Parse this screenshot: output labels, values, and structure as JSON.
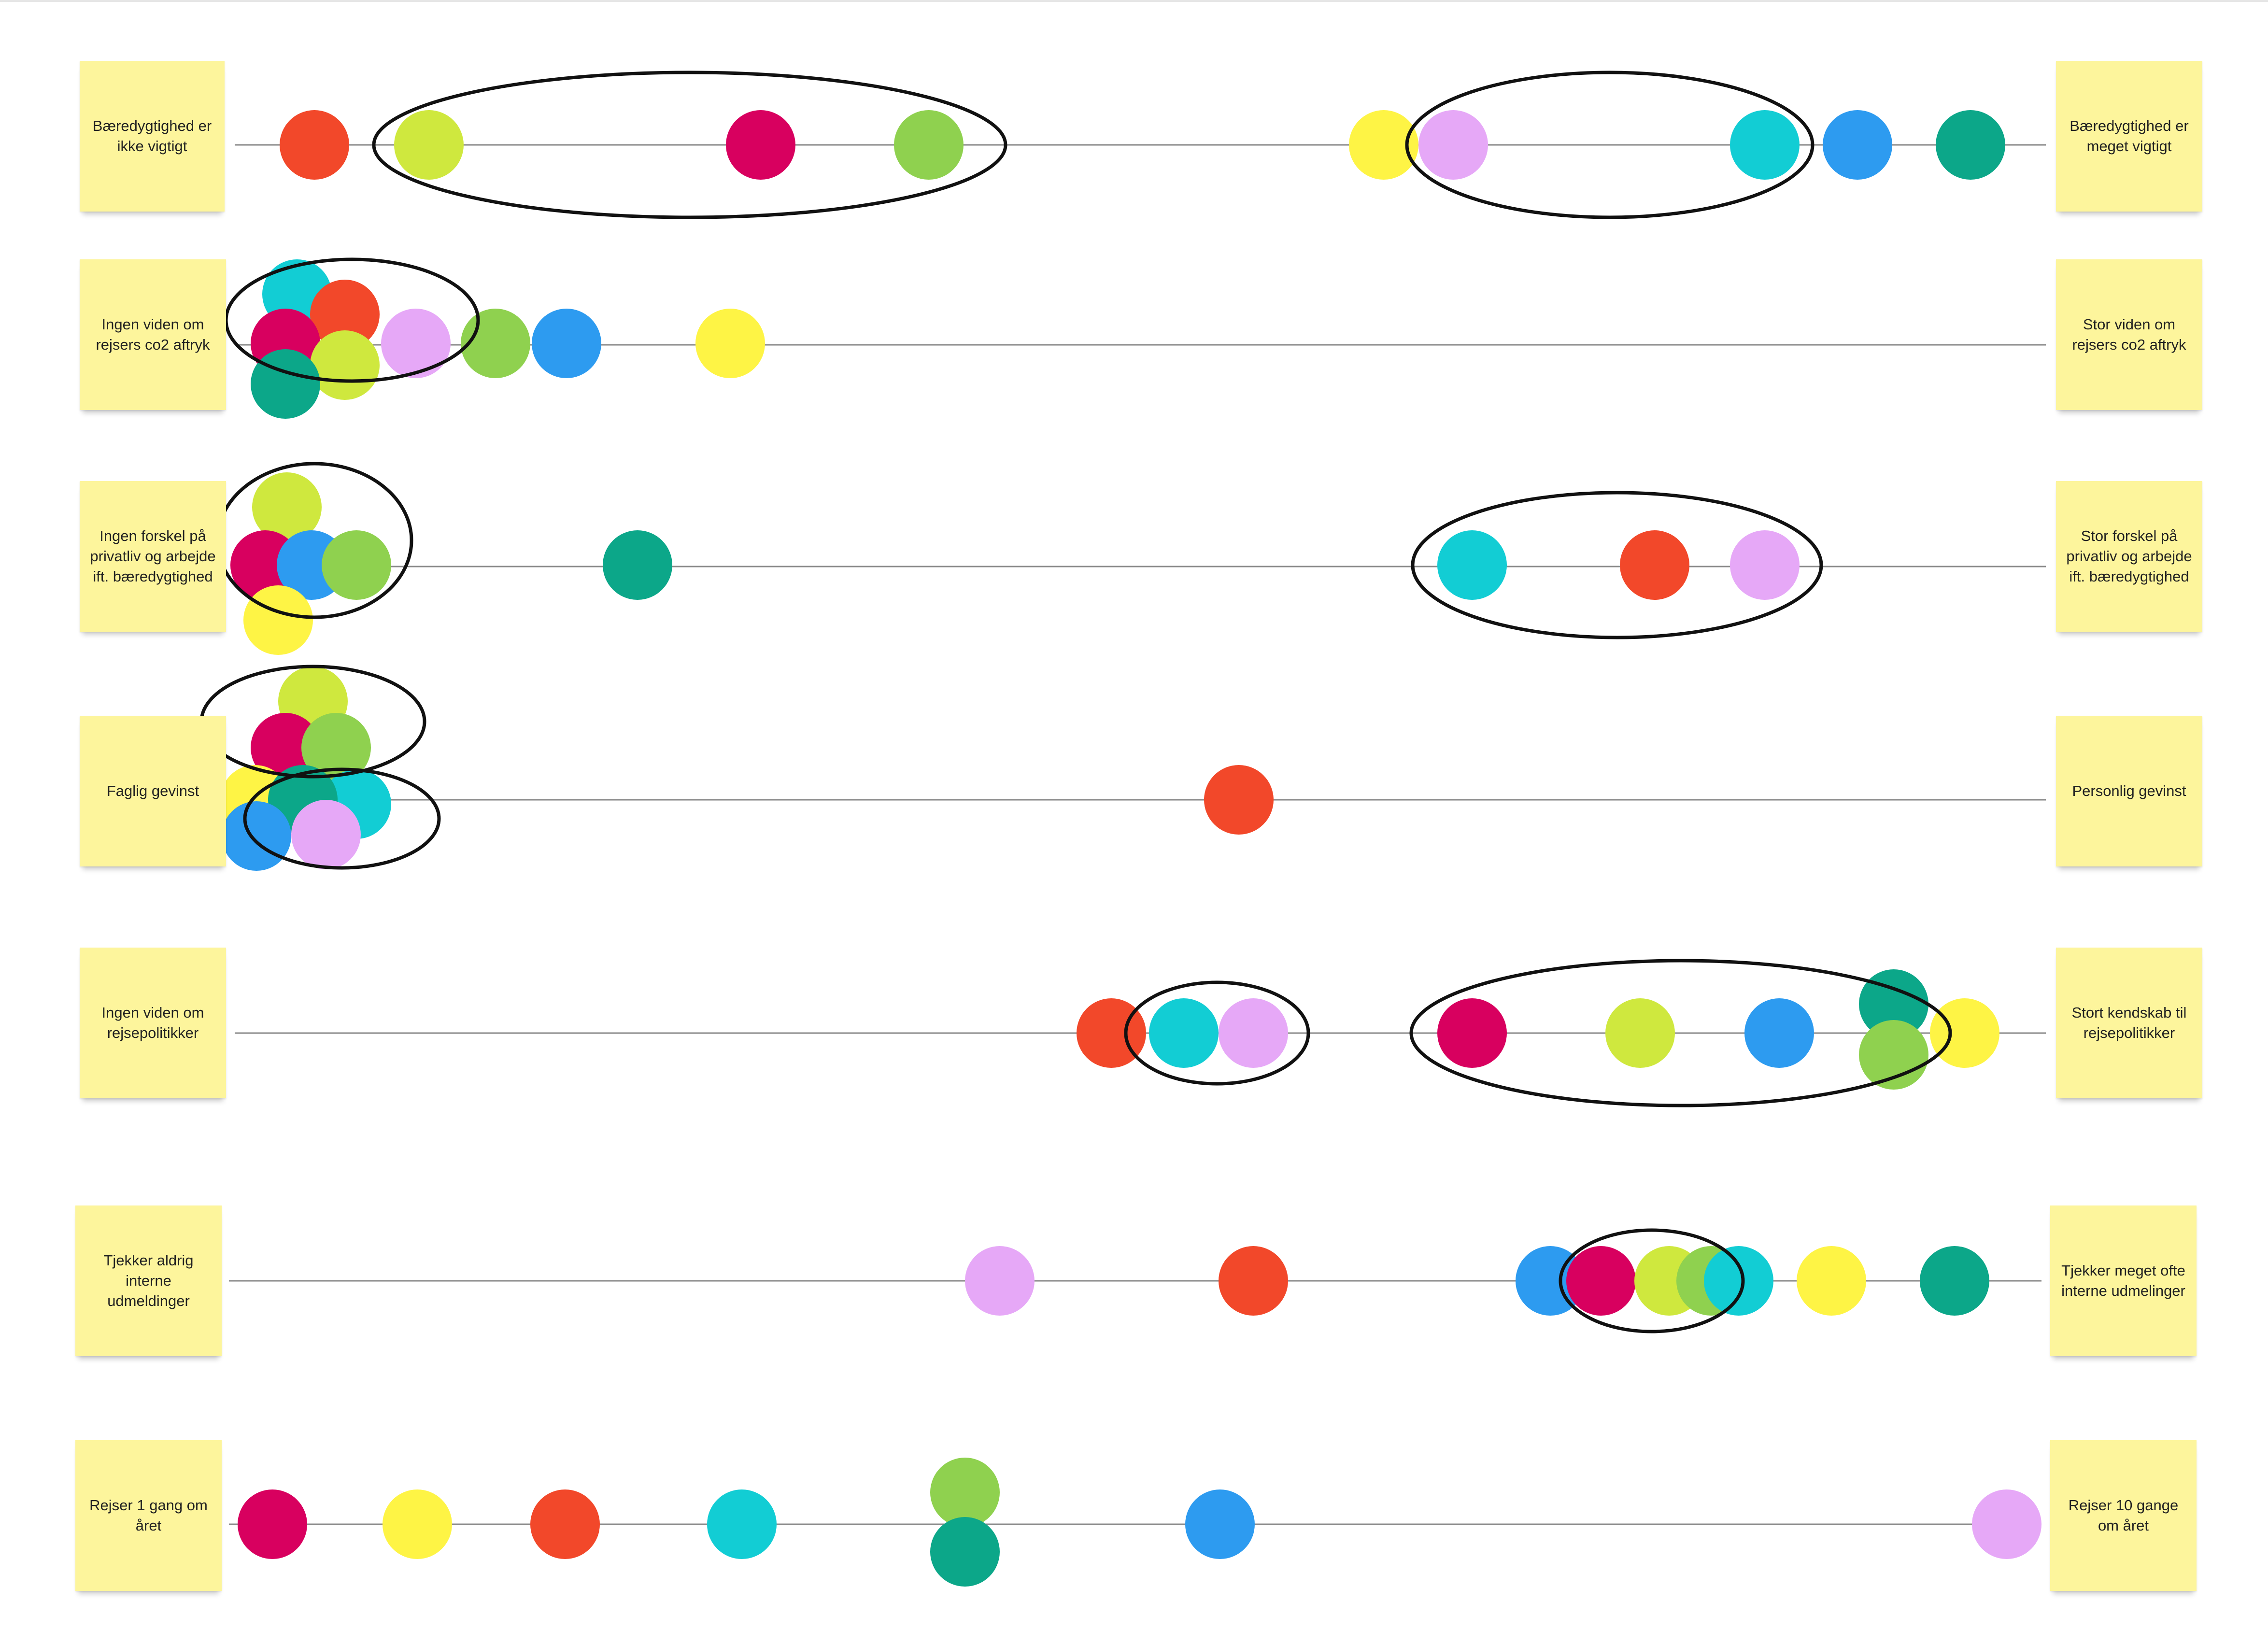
{
  "palette": {
    "red": "#f2482a",
    "lime": "#cfe83e",
    "magenta": "#d8005f",
    "green": "#8fd14f",
    "yellow": "#fef445",
    "lavender": "#e6a8f7",
    "cyan": "#12cdd4",
    "blue": "#2d9bf0",
    "teal": "#0ca789",
    "sticky": "#fdf59c",
    "ellipse": "#111111",
    "axis": "#8a8a8a"
  },
  "rows": [
    {
      "id": "row-sustainability-importance",
      "left_label": "Bæredygtighed er ikke vigtigt",
      "right_label": "Bæredygtighed er meget vigtigt",
      "dots": [
        "red",
        "lime",
        "magenta",
        "green",
        "yellow",
        "lavender",
        "cyan",
        "blue",
        "teal"
      ]
    },
    {
      "id": "row-co2-knowledge",
      "left_label": "Ingen viden om rejsers co2 aftryk",
      "right_label": "Stor viden om rejsers co2 aftryk",
      "dots": [
        "cyan",
        "red",
        "magenta",
        "lime",
        "teal",
        "lavender",
        "green",
        "blue",
        "yellow"
      ]
    },
    {
      "id": "row-private-work-difference",
      "left_label": "Ingen forskel på privatliv og arbejde ift. bæredygtighed",
      "right_label": "Stor forskel på privatliv og arbejde ift. bæredygtighed",
      "dots": [
        "lime",
        "magenta",
        "blue",
        "green",
        "yellow",
        "teal",
        "cyan",
        "red",
        "lavender"
      ]
    },
    {
      "id": "row-gain-type",
      "left_label": "Faglig gevinst",
      "right_label": "Personlig gevinst",
      "dots": [
        "lime",
        "magenta",
        "green",
        "yellow",
        "cyan",
        "teal",
        "blue",
        "lavender",
        "red"
      ]
    },
    {
      "id": "row-travel-policy-knowledge",
      "left_label": "Ingen viden om rejsepolitikker",
      "right_label": "Stort kendskab til rejsepolitikker",
      "dots": [
        "red",
        "cyan",
        "lavender",
        "magenta",
        "lime",
        "blue",
        "teal",
        "green",
        "yellow"
      ]
    },
    {
      "id": "row-internal-announcements",
      "left_label": "Tjekker aldrig interne udmeldinger",
      "right_label": "Tjekker meget ofte interne udmelinger",
      "dots": [
        "lavender",
        "red",
        "blue",
        "magenta",
        "lime",
        "green",
        "cyan",
        "yellow",
        "teal"
      ]
    },
    {
      "id": "row-travel-frequency",
      "left_label": "Rejser 1 gang om året",
      "right_label": "Rejser 10 gange om året",
      "dots": [
        "magenta",
        "yellow",
        "red",
        "cyan",
        "green",
        "teal",
        "blue",
        "lavender"
      ]
    }
  ]
}
